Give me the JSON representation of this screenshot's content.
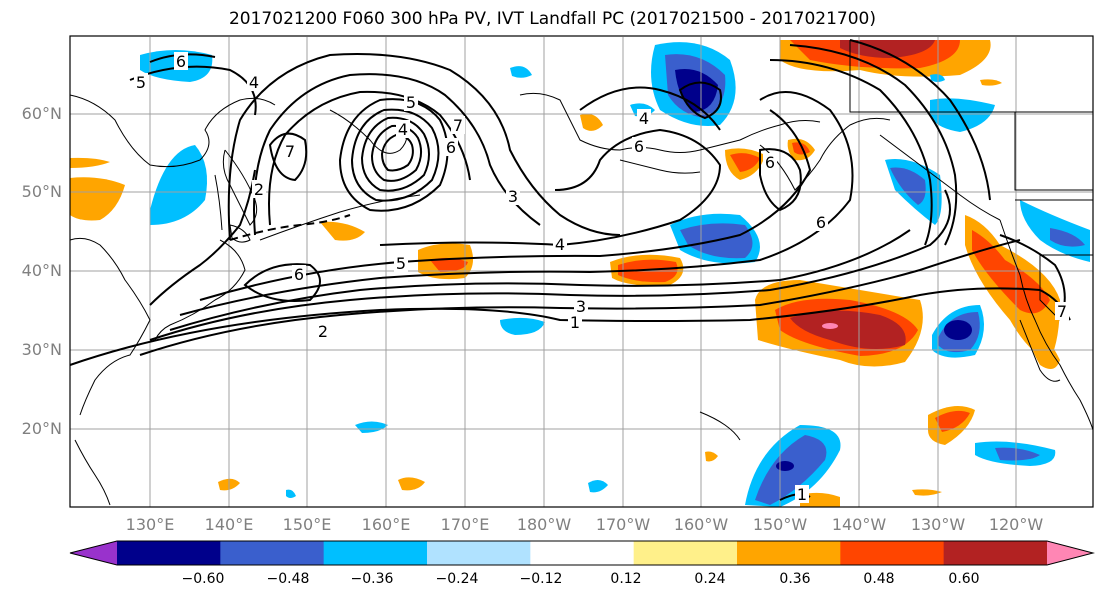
{
  "title": "2017021200 F060 300 hPa PV, IVT Landfall PC (2017021500 - 2017021700)",
  "lat_labels": [
    "60°N",
    "50°N",
    "40°N",
    "30°N",
    "20°N"
  ],
  "lon_labels": [
    "130°E",
    "140°E",
    "150°E",
    "160°E",
    "170°E",
    "180°W",
    "170°W",
    "160°W",
    "150°W",
    "140°W",
    "130°W",
    "120°W"
  ],
  "contour_labels": [
    "6",
    "5",
    "4",
    "7",
    "2",
    "7",
    "6",
    "5",
    "4",
    "3",
    "6",
    "6",
    "5",
    "4",
    "3",
    "2",
    "1",
    "4",
    "6",
    "6",
    "1",
    "7"
  ],
  "colorbar": {
    "tick_labels": [
      "−0.60",
      "−0.48",
      "−0.36",
      "−0.24",
      "−0.12",
      "0.12",
      "0.24",
      "0.36",
      "0.48",
      "0.60"
    ],
    "colors": [
      "#9932cc",
      "#00008b",
      "#3a5fcd",
      "#00bfff",
      "#b0e2ff",
      "#ffffff",
      "#fff08a",
      "#ffa500",
      "#ff4500",
      "#b22222",
      "#ff86b4"
    ]
  },
  "colors": {
    "grid": "#a0a0a0",
    "coast": "#000000",
    "contour": "#000000"
  }
}
